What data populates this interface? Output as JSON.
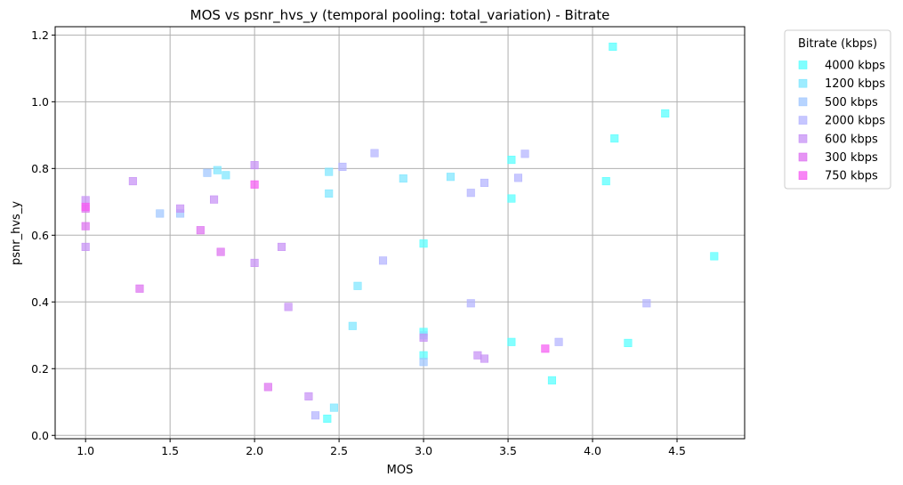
{
  "chart_data": {
    "type": "scatter",
    "title": "MOS vs psnr_hvs_y (temporal pooling: total_variation) - Bitrate",
    "xlabel": "MOS",
    "ylabel": "psnr_hvs_y",
    "xlim": [
      0.82,
      4.9
    ],
    "ylim": [
      -0.01,
      1.225
    ],
    "xticks": [
      "1.0",
      "1.5",
      "2.0",
      "2.5",
      "3.0",
      "3.5",
      "4.0",
      "4.5"
    ],
    "yticks": [
      "0.0",
      "0.2",
      "0.4",
      "0.6",
      "0.8",
      "1.0",
      "1.2"
    ],
    "grid": true,
    "legend": {
      "title": "Bitrate (kbps)",
      "placement": "outside-top-right"
    },
    "marker": "square",
    "series": [
      {
        "name": "4000 kbps",
        "color": "#55ffff",
        "points": [
          [
            4.12,
            1.165
          ],
          [
            4.43,
            0.965
          ],
          [
            4.13,
            0.89
          ],
          [
            4.08,
            0.762
          ],
          [
            3.52,
            0.826
          ],
          [
            3.52,
            0.71
          ],
          [
            4.72,
            0.537
          ],
          [
            3.0,
            0.575
          ],
          [
            3.0,
            0.31
          ],
          [
            3.0,
            0.24
          ],
          [
            3.52,
            0.28
          ],
          [
            3.76,
            0.165
          ],
          [
            4.21,
            0.277
          ],
          [
            2.43,
            0.05
          ]
        ]
      },
      {
        "name": "1200 kbps",
        "color": "#7de6ff",
        "points": [
          [
            1.78,
            0.795
          ],
          [
            1.83,
            0.78
          ],
          [
            2.44,
            0.79
          ],
          [
            2.44,
            0.725
          ],
          [
            2.88,
            0.77
          ],
          [
            3.16,
            0.775
          ],
          [
            2.61,
            0.448
          ],
          [
            2.58,
            0.328
          ],
          [
            3.0,
            0.3
          ],
          [
            2.47,
            0.083
          ]
        ]
      },
      {
        "name": "500 kbps",
        "color": "#9fc6ff",
        "points": [
          [
            1.72,
            0.787
          ],
          [
            1.44,
            0.665
          ],
          [
            1.56,
            0.665
          ],
          [
            3.0,
            0.22
          ]
        ]
      },
      {
        "name": "2000 kbps",
        "color": "#b3b3ff",
        "points": [
          [
            2.52,
            0.805
          ],
          [
            2.71,
            0.846
          ],
          [
            3.28,
            0.727
          ],
          [
            3.36,
            0.757
          ],
          [
            3.56,
            0.772
          ],
          [
            3.6,
            0.844
          ],
          [
            2.76,
            0.524
          ],
          [
            3.28,
            0.396
          ],
          [
            3.8,
            0.28
          ],
          [
            4.32,
            0.396
          ],
          [
            2.36,
            0.06
          ]
        ]
      },
      {
        "name": "600 kbps",
        "color": "#c690f5",
        "points": [
          [
            1.0,
            0.705
          ],
          [
            1.0,
            0.565
          ],
          [
            1.28,
            0.762
          ],
          [
            1.56,
            0.68
          ],
          [
            1.76,
            0.707
          ],
          [
            2.0,
            0.81
          ],
          [
            2.0,
            0.517
          ],
          [
            2.16,
            0.565
          ],
          [
            2.2,
            0.385
          ],
          [
            3.0,
            0.293
          ],
          [
            3.32,
            0.24
          ],
          [
            3.36,
            0.23
          ],
          [
            2.32,
            0.117
          ]
        ]
      },
      {
        "name": "300 kbps",
        "color": "#dd70f0",
        "points": [
          [
            1.0,
            0.68
          ],
          [
            1.0,
            0.627
          ],
          [
            1.32,
            0.44
          ],
          [
            1.68,
            0.615
          ],
          [
            1.8,
            0.55
          ],
          [
            2.08,
            0.145
          ]
        ]
      },
      {
        "name": "750 kbps",
        "color": "#f55cf2",
        "points": [
          [
            1.0,
            0.685
          ],
          [
            2.0,
            0.752
          ],
          [
            3.72,
            0.26
          ]
        ]
      }
    ]
  }
}
